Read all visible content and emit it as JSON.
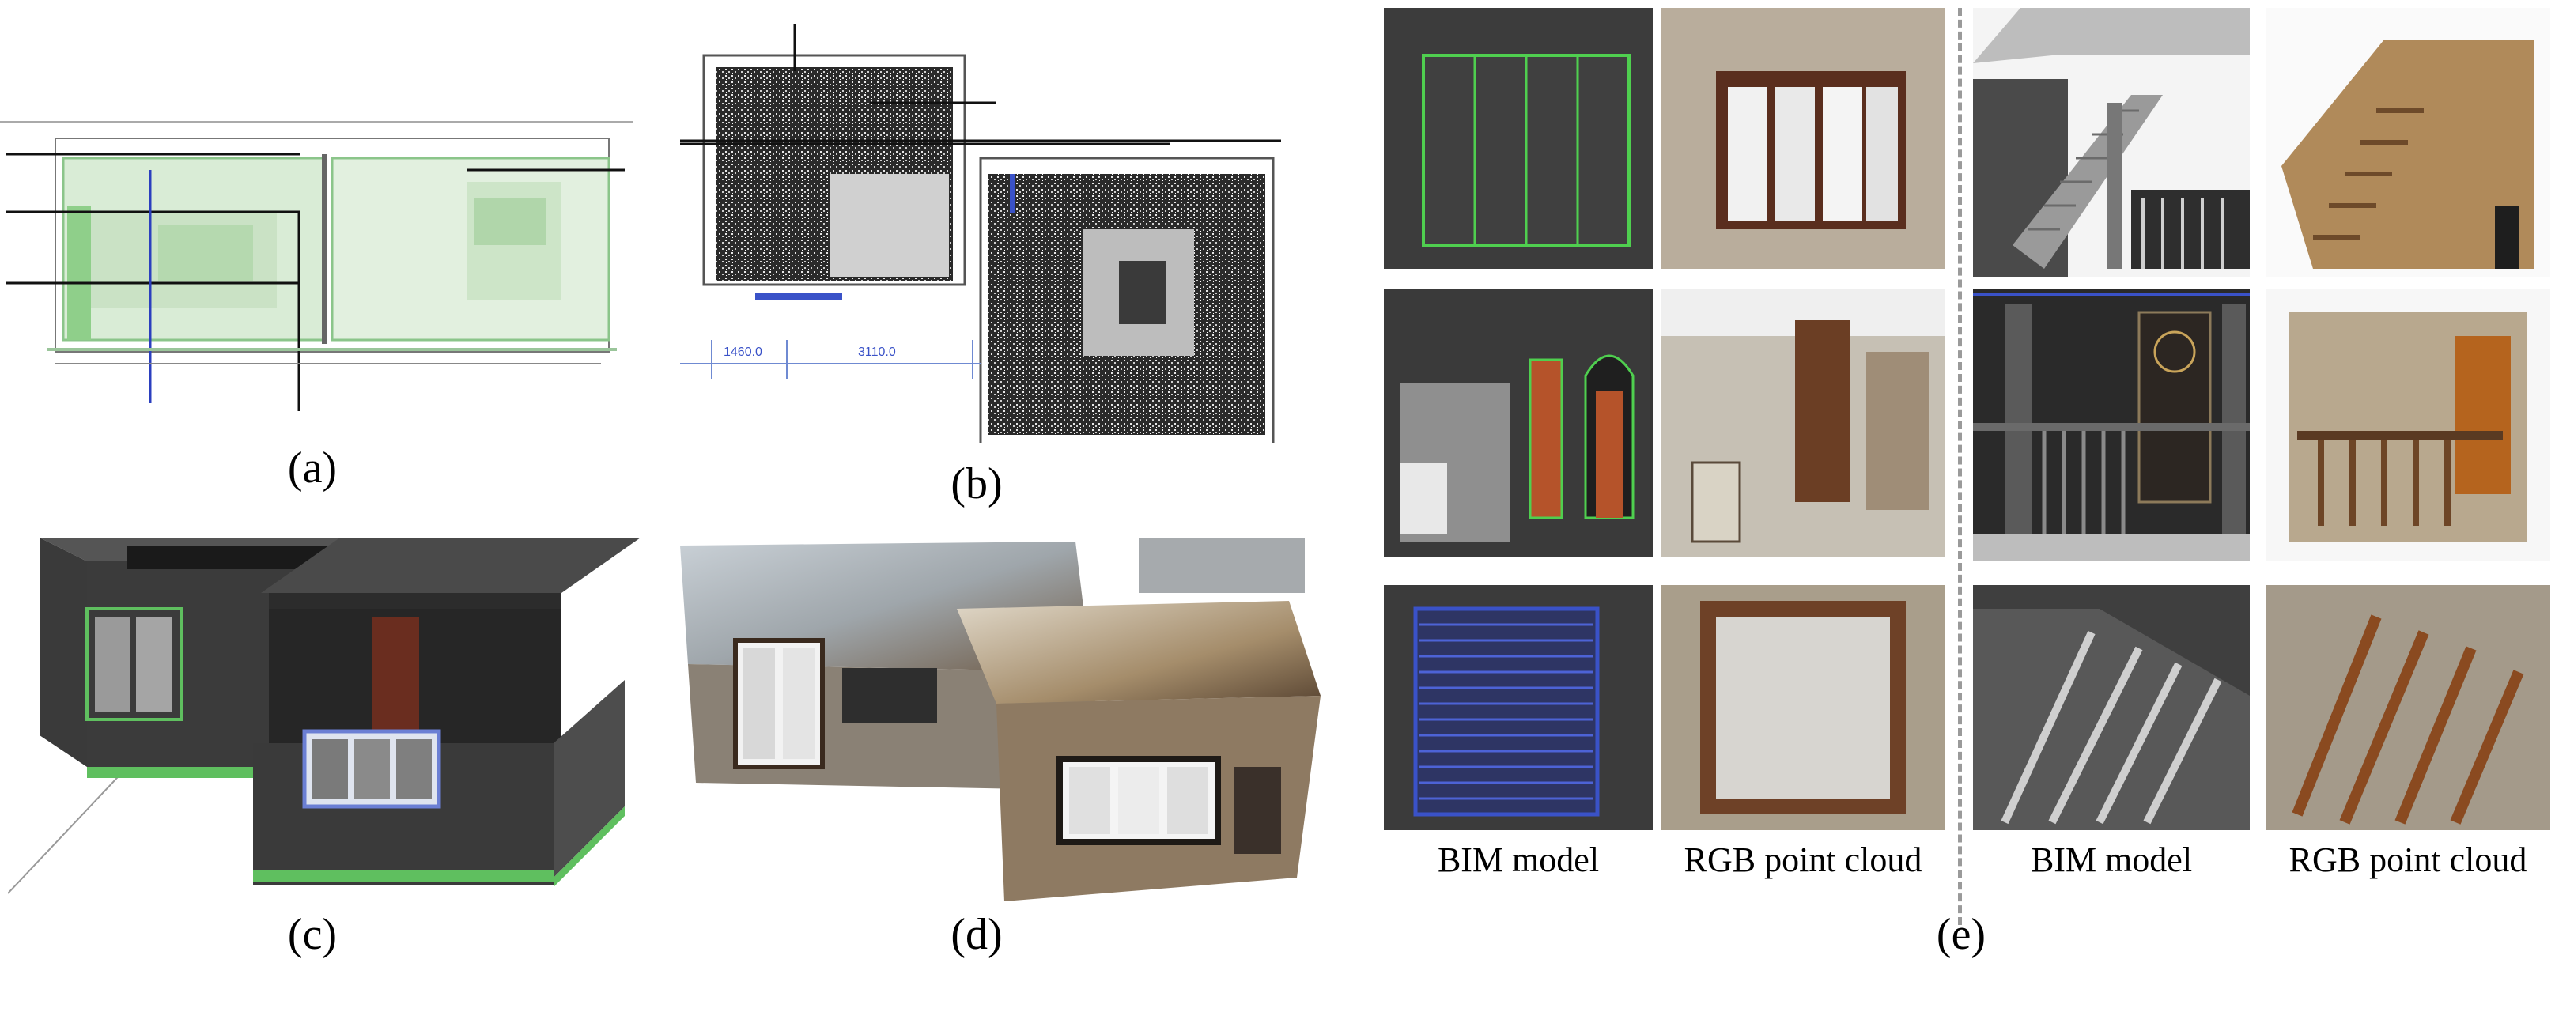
{
  "figure": {
    "captions": {
      "a": "(a)",
      "b": "(b)",
      "c": "(c)",
      "d": "(d)",
      "e": "(e)"
    },
    "panel_b": {
      "dim_left": "1460.0",
      "dim_right": "3110.0"
    },
    "panel_e": {
      "col_label_bim_left": "BIM model",
      "col_label_rgb_left": "RGB point cloud",
      "col_label_bim_right": "BIM model",
      "col_label_rgb_right": "RGB point cloud"
    },
    "colors": {
      "revit_green": "#5fbf5f",
      "revit_blue": "#3a52c8",
      "wall_dark": "#3b3b3b",
      "door_orange": "#b5532a"
    }
  }
}
